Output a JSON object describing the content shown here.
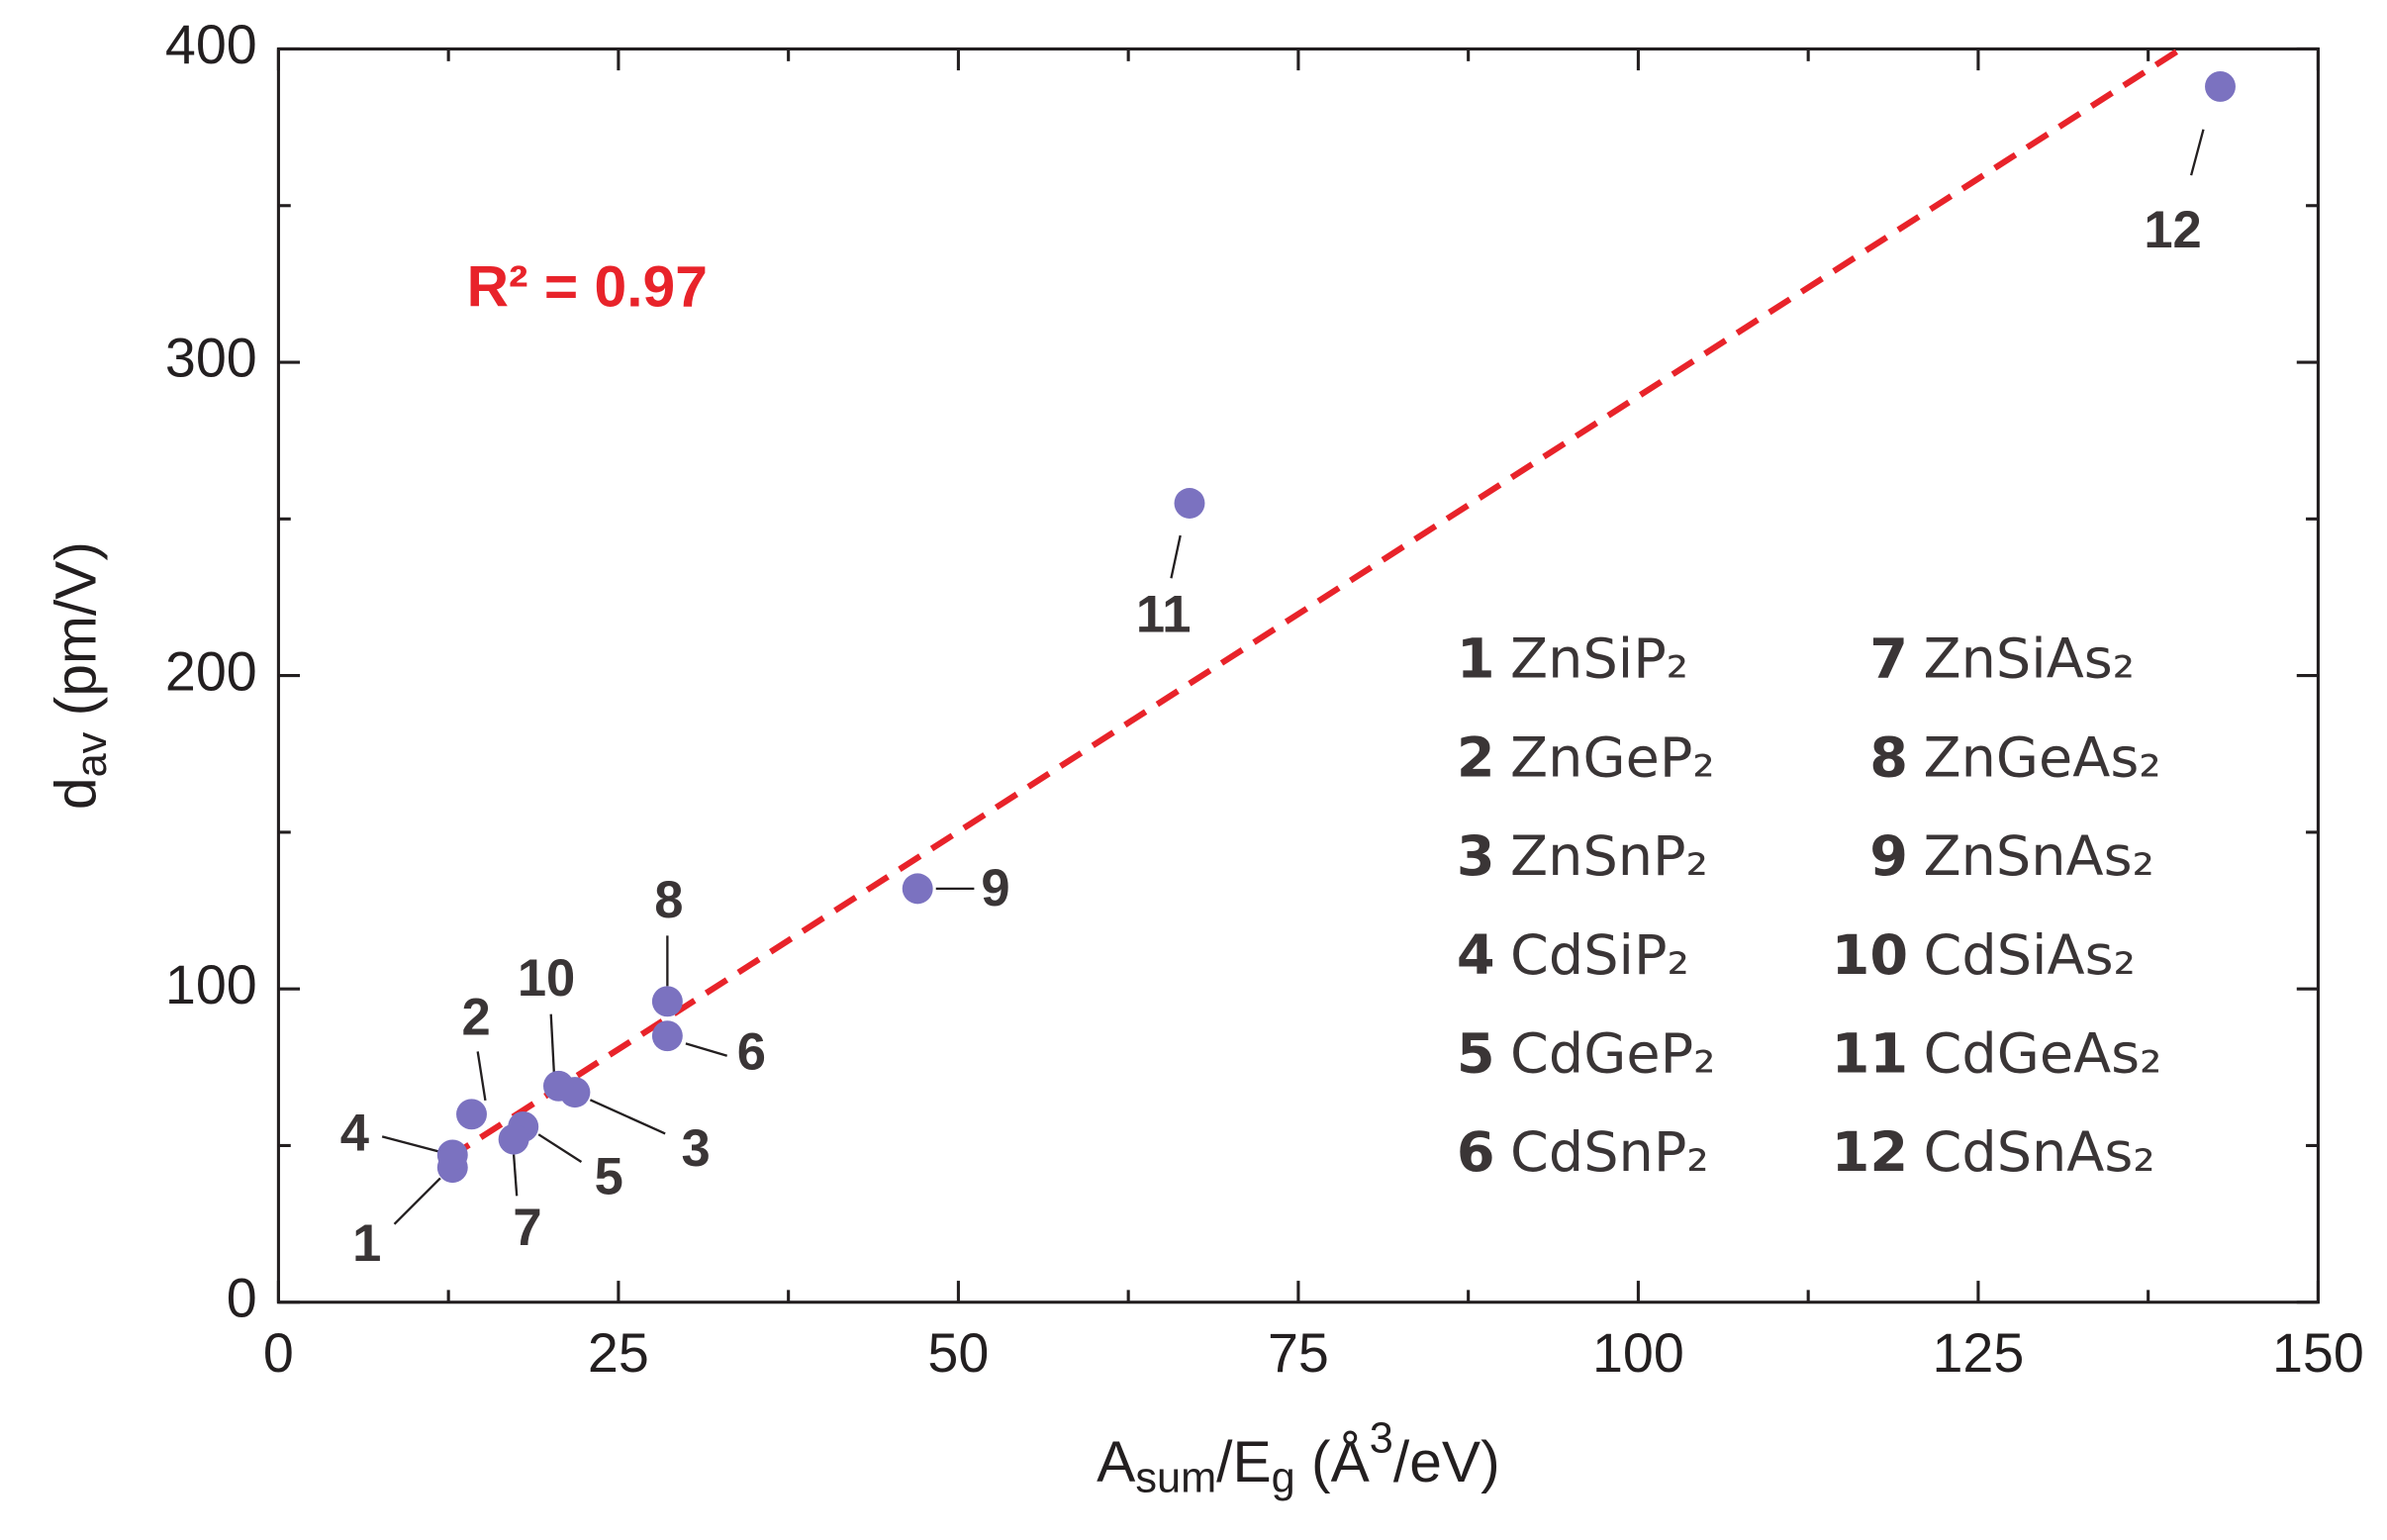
{
  "chart_data": {
    "type": "scatter",
    "xlabel": [
      "A",
      "sum",
      "/E",
      "g",
      "  (Å",
      "3",
      "/eV)"
    ],
    "ylabel": [
      "d",
      "av",
      " (pm/V)"
    ],
    "annotation": "R² = 0.97",
    "annotation_color": "#e8232a",
    "xlim": [
      0,
      150
    ],
    "ylim": [
      0,
      400
    ],
    "xticks": [
      0,
      25,
      50,
      75,
      100,
      125,
      150
    ],
    "yticks": [
      0,
      100,
      200,
      300,
      400
    ],
    "xminorticks": [
      12.5,
      37.5,
      62.5,
      87.5,
      112.5,
      137.5
    ],
    "yminorticks": [
      50,
      150,
      250,
      350
    ],
    "series": [
      {
        "color": "#7b72c0",
        "x": [
          12.8,
          14.2,
          21.8,
          12.8,
          18.0,
          28.6,
          17.3,
          28.6,
          47.0,
          20.6,
          67.0,
          142.8
        ],
        "values": [
          43,
          60,
          67,
          47,
          56,
          85,
          52,
          96,
          132,
          69,
          255,
          388
        ],
        "labels": [
          "1",
          "2",
          "3",
          "4",
          "5",
          "6",
          "7",
          "8",
          "9",
          "10",
          "11",
          "12"
        ],
        "compounds": [
          "ZnSiP₂",
          "ZnGeP₂",
          "ZnSnP₂",
          "CdSiP₂",
          "CdGeP₂",
          "CdSnP₂",
          "ZnSiAs₂",
          "ZnGeAs₂",
          "ZnSnAs₂",
          "CdSiAs₂",
          "CdGeAs₂",
          "CdSnAs₂"
        ]
      }
    ],
    "fit": {
      "color": "#e8232a",
      "dashed": true,
      "x": [
        12.5,
        139.9
      ],
      "values": [
        46,
        400
      ]
    }
  }
}
